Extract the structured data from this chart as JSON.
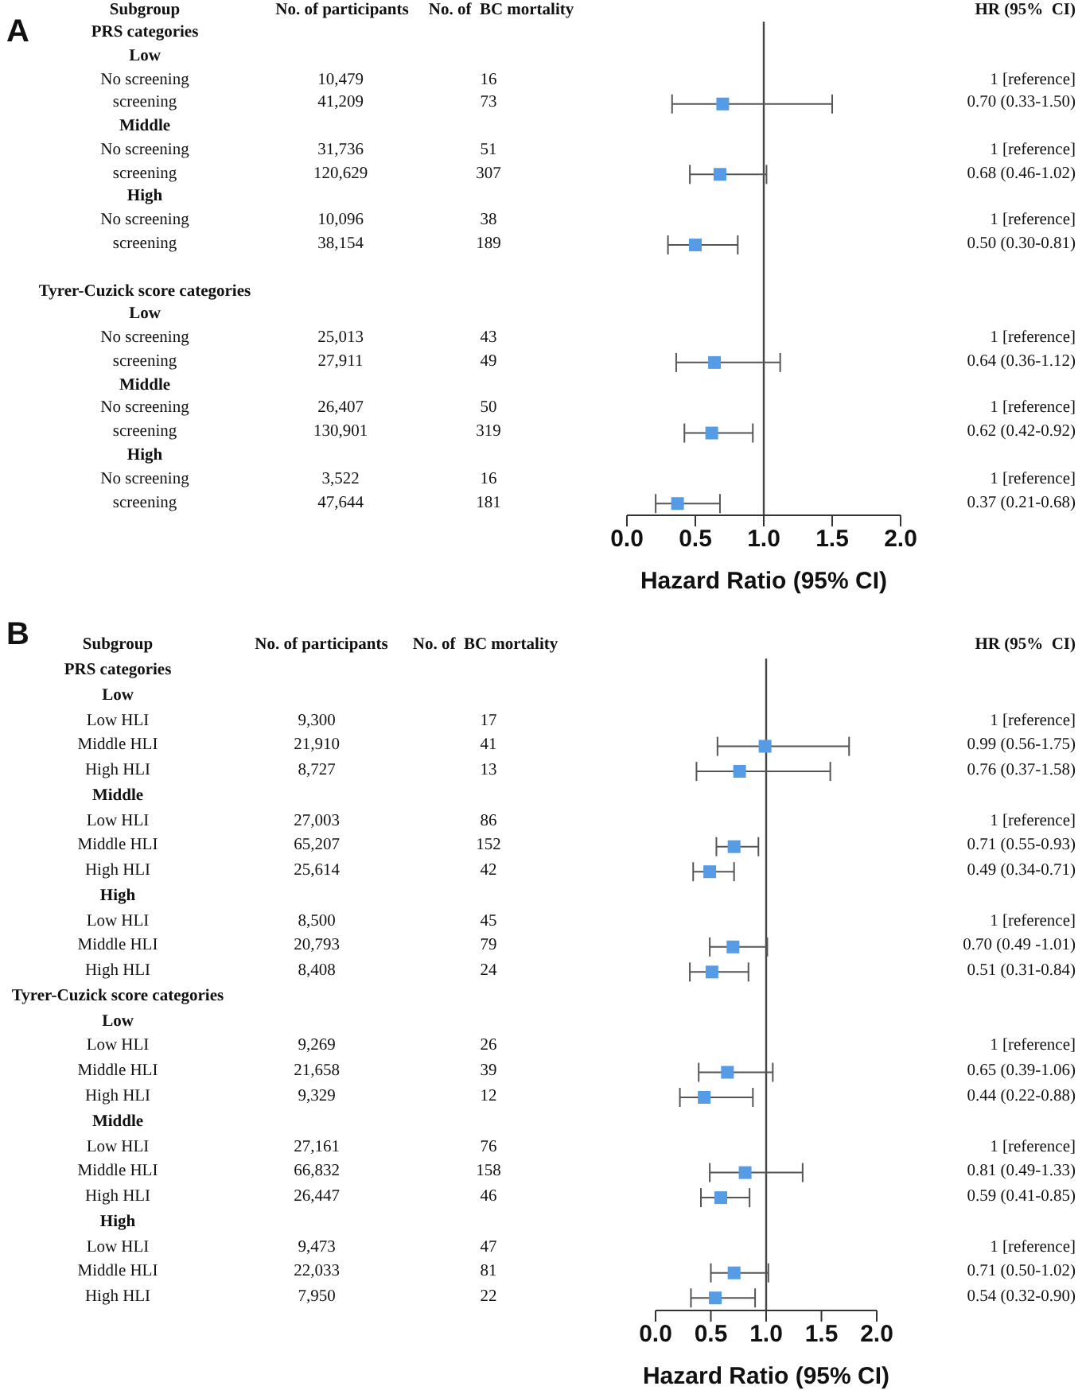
{
  "chart_data": [
    {
      "type": "other",
      "title": "A",
      "ylabel": "Subgroup",
      "categories": [
        "PRS categories",
        "Low",
        "No screening",
        "screening",
        "Middle",
        "No screening",
        "screening",
        "High",
        "No screening",
        "screening",
        null,
        "Tyrer-Cuzick score categories",
        "Low",
        "No screening",
        "screening",
        "Middle",
        "No screening",
        "screening",
        "High",
        "No screening",
        "screening"
      ],
      "series": [
        {
          "name": "No. of participants",
          "values": [
            null,
            null,
            10479,
            41209,
            null,
            31736,
            120629,
            null,
            10096,
            38154,
            null,
            null,
            null,
            25013,
            27911,
            null,
            26407,
            130901,
            null,
            3522,
            47644
          ],
          "value_labels": [
            null,
            null,
            "10,479",
            "41,209",
            null,
            "31,736",
            "120,629",
            null,
            "10,096",
            "38,154",
            null,
            null,
            null,
            "25,013",
            "27,911",
            null,
            "26,407",
            "130,901",
            null,
            "3,522",
            "47,644"
          ]
        },
        {
          "name": "No. of  BC mortality",
          "values": [
            null,
            null,
            16,
            73,
            null,
            51,
            307,
            null,
            38,
            189,
            null,
            null,
            null,
            43,
            49,
            null,
            50,
            319,
            null,
            16,
            181
          ],
          "value_labels": [
            null,
            null,
            "16",
            "73",
            null,
            "51",
            "307",
            null,
            "38",
            "189",
            null,
            null,
            null,
            "43",
            "49",
            null,
            "50",
            "319",
            null,
            "16",
            "181"
          ]
        }
      ]
    },
    {
      "type": "scatter",
      "xlabel": "Hazard Ratio (95% CI)",
      "orientation": "horizontal",
      "marker": "square",
      "categories": [
        null,
        null,
        null,
        null,
        null,
        null,
        null,
        null,
        null,
        null,
        null,
        null,
        null,
        null,
        null,
        null,
        null,
        null,
        null,
        null,
        null
      ],
      "series": [
        {
          "name": "HR (95%  CI)",
          "color": "#559be6",
          "values": [
            null,
            null,
            null,
            0.7,
            null,
            null,
            0.68,
            null,
            null,
            0.5,
            null,
            null,
            null,
            null,
            0.64,
            null,
            null,
            0.62,
            null,
            null,
            0.37
          ],
          "errors": [
            null,
            null,
            null,
            [
              0.33,
              1.5
            ],
            null,
            null,
            [
              0.46,
              1.02
            ],
            null,
            null,
            [
              0.3,
              0.81
            ],
            null,
            null,
            null,
            null,
            [
              0.36,
              1.12
            ],
            null,
            null,
            [
              0.42,
              0.92
            ],
            null,
            null,
            [
              0.21,
              0.68
            ]
          ],
          "value_labels": [
            null,
            null,
            "1 [reference]",
            "0.70 (0.33-1.50)",
            null,
            "1 [reference]",
            "0.68 (0.46-1.02)",
            null,
            "1 [reference]",
            "0.50 (0.30-0.81)",
            null,
            null,
            null,
            "1 [reference]",
            "0.64 (0.36-1.12)",
            null,
            "1 [reference]",
            "0.62 (0.42-0.92)",
            null,
            "1 [reference]",
            "0.37 (0.21-0.68)"
          ]
        }
      ],
      "xlim": [
        0,
        2
      ],
      "xticks": [
        {
          "value": 0,
          "label": "0.0"
        },
        {
          "value": 0.5,
          "label": "0.5"
        },
        {
          "value": 1,
          "label": "1.0"
        },
        {
          "value": 1.5,
          "label": "1.5"
        },
        {
          "value": 2,
          "label": "2.0"
        }
      ],
      "ref_lines": [
        {
          "axis": "x",
          "value": 1,
          "color": "#444444"
        }
      ]
    },
    {
      "type": "other",
      "title": "B",
      "ylabel": "Subgroup",
      "categories": [
        "PRS categories",
        "Low",
        "Low HLI",
        "Middle HLI",
        "High HLI",
        "Middle",
        "Low HLI",
        "Middle HLI",
        "High HLI",
        "High",
        "Low HLI",
        "Middle HLI",
        "High HLI",
        "Tyrer-Cuzick score categories",
        "Low",
        "Low HLI",
        "Middle HLI",
        "High HLI",
        "Middle",
        "Low HLI",
        "Middle HLI",
        "High HLI",
        "High",
        "Low HLI",
        "Middle HLI",
        "High HLI"
      ],
      "series": [
        {
          "name": "No. of participants",
          "values": [
            null,
            null,
            9300,
            21910,
            8727,
            null,
            27003,
            65207,
            25614,
            null,
            8500,
            20793,
            8408,
            null,
            null,
            9269,
            21658,
            9329,
            null,
            27161,
            66832,
            26447,
            null,
            9473,
            22033,
            7950
          ],
          "value_labels": [
            null,
            null,
            "9,300",
            "21,910",
            "8,727",
            null,
            "27,003",
            "65,207",
            "25,614",
            null,
            "8,500",
            "20,793",
            "8,408",
            null,
            null,
            "9,269",
            "21,658",
            "9,329",
            null,
            "27,161",
            "66,832",
            "26,447",
            null,
            "9,473",
            "22,033",
            "7,950"
          ]
        },
        {
          "name": "No. of  BC mortality",
          "values": [
            null,
            null,
            17,
            41,
            13,
            null,
            86,
            152,
            42,
            null,
            45,
            79,
            24,
            null,
            null,
            26,
            39,
            12,
            null,
            76,
            158,
            46,
            null,
            47,
            81,
            22
          ],
          "value_labels": [
            null,
            null,
            "17",
            "41",
            "13",
            null,
            "86",
            "152",
            "42",
            null,
            "45",
            "79",
            "24",
            null,
            null,
            "26",
            "39",
            "12",
            null,
            "76",
            "158",
            "46",
            null,
            "47",
            "81",
            "22"
          ]
        }
      ]
    },
    {
      "type": "scatter",
      "xlabel": "Hazard Ratio (95% CI)",
      "orientation": "horizontal",
      "marker": "square",
      "categories": [
        null,
        null,
        null,
        null,
        null,
        null,
        null,
        null,
        null,
        null,
        null,
        null,
        null,
        null,
        null,
        null,
        null,
        null,
        null,
        null,
        null,
        null,
        null,
        null,
        null,
        null
      ],
      "series": [
        {
          "name": "HR (95%  CI)",
          "color": "#559be6",
          "values": [
            null,
            null,
            null,
            0.99,
            0.76,
            null,
            null,
            0.71,
            0.49,
            null,
            null,
            0.7,
            0.51,
            null,
            null,
            null,
            0.65,
            0.44,
            null,
            null,
            0.81,
            0.59,
            null,
            null,
            0.71,
            0.54
          ],
          "errors": [
            null,
            null,
            null,
            [
              0.56,
              1.75
            ],
            [
              0.37,
              1.58
            ],
            null,
            null,
            [
              0.55,
              0.93
            ],
            [
              0.34,
              0.71
            ],
            null,
            null,
            [
              0.49,
              1.01
            ],
            [
              0.31,
              0.84
            ],
            null,
            null,
            null,
            [
              0.39,
              1.06
            ],
            [
              0.22,
              0.88
            ],
            null,
            null,
            [
              0.49,
              1.33
            ],
            [
              0.41,
              0.85
            ],
            null,
            null,
            [
              0.5,
              1.02
            ],
            [
              0.32,
              0.9
            ]
          ],
          "value_labels": [
            null,
            null,
            "1 [reference]",
            "0.99 (0.56-1.75)",
            "0.76 (0.37-1.58)",
            null,
            "1 [reference]",
            "0.71 (0.55-0.93)",
            "0.49 (0.34-0.71)",
            null,
            "1 [reference]",
            "0.70 (0.49 -1.01)",
            "0.51 (0.31-0.84)",
            null,
            null,
            "1 [reference]",
            "0.65 (0.39-1.06)",
            "0.44 (0.22-0.88)",
            null,
            "1 [reference]",
            "0.81 (0.49-1.33)",
            "0.59 (0.41-0.85)",
            null,
            "1 [reference]",
            "0.71 (0.50-1.02)",
            "0.54 (0.32-0.90)"
          ]
        }
      ],
      "xlim": [
        0,
        2
      ],
      "xticks": [
        {
          "value": 0,
          "label": "0.0"
        },
        {
          "value": 0.5,
          "label": "0.5"
        },
        {
          "value": 1,
          "label": "1.0"
        },
        {
          "value": 1.5,
          "label": "1.5"
        },
        {
          "value": 2,
          "label": "2.0"
        }
      ],
      "ref_lines": [
        {
          "axis": "x",
          "value": 1,
          "color": "#444444"
        }
      ]
    }
  ]
}
